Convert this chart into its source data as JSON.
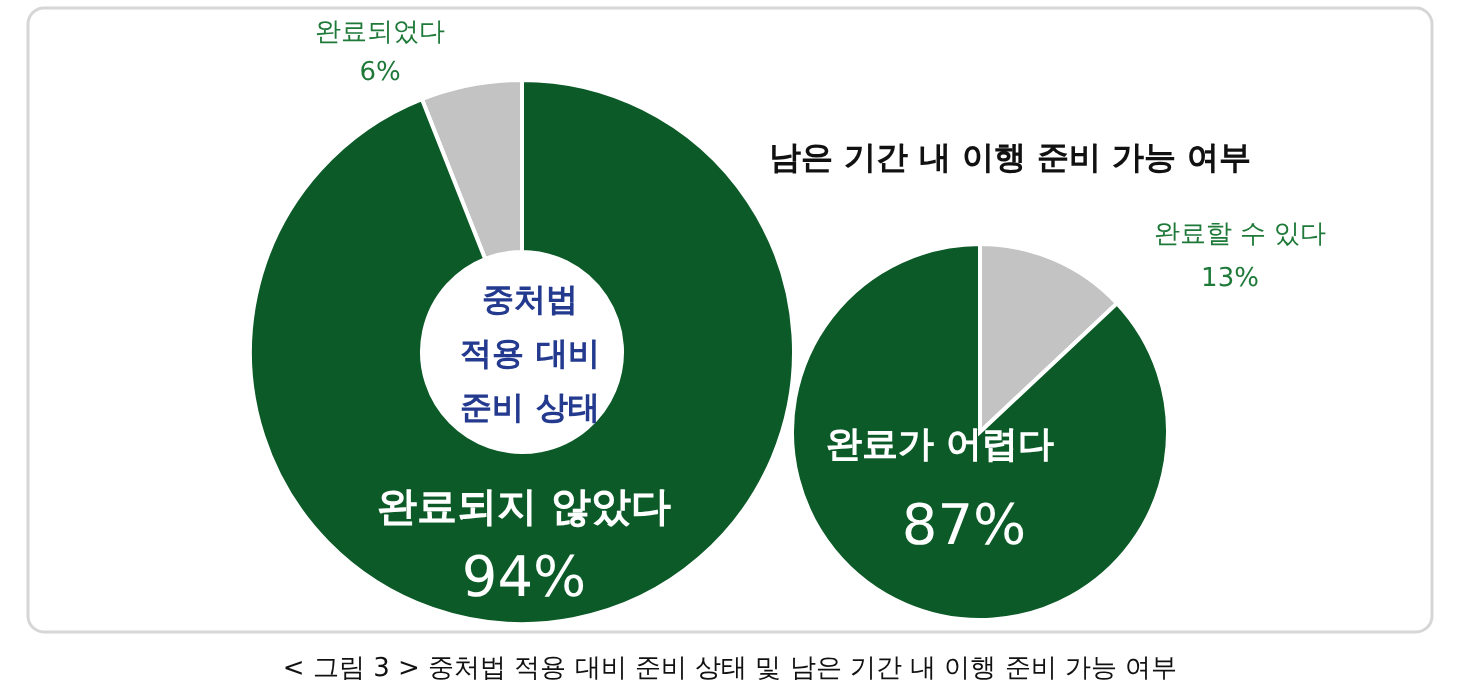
{
  "chart_data": [
    {
      "type": "donut",
      "title": "중처법 적용 대비 준비 상태",
      "categories": [
        "완료되었다",
        "완료되지 않았다"
      ],
      "values": [
        6,
        94
      ],
      "colors": [
        "#c3c3c3",
        "#0b5a27"
      ],
      "value_labels": [
        "6%",
        "94%"
      ],
      "annotations": [
        "< 그림 3 > 중처법 적용 대비 준비 상태 및 남은 기간 내 이행 준비 가능 여부"
      ]
    },
    {
      "type": "pie",
      "title": "남은 기간 내 이행 준비 가능 여부",
      "categories": [
        "완료할 수 있다",
        "완료가 어렵다"
      ],
      "values": [
        13,
        87
      ],
      "colors": [
        "#c3c3c3",
        "#0b5a27"
      ],
      "value_labels": [
        "13%",
        "87%"
      ]
    }
  ]
}
